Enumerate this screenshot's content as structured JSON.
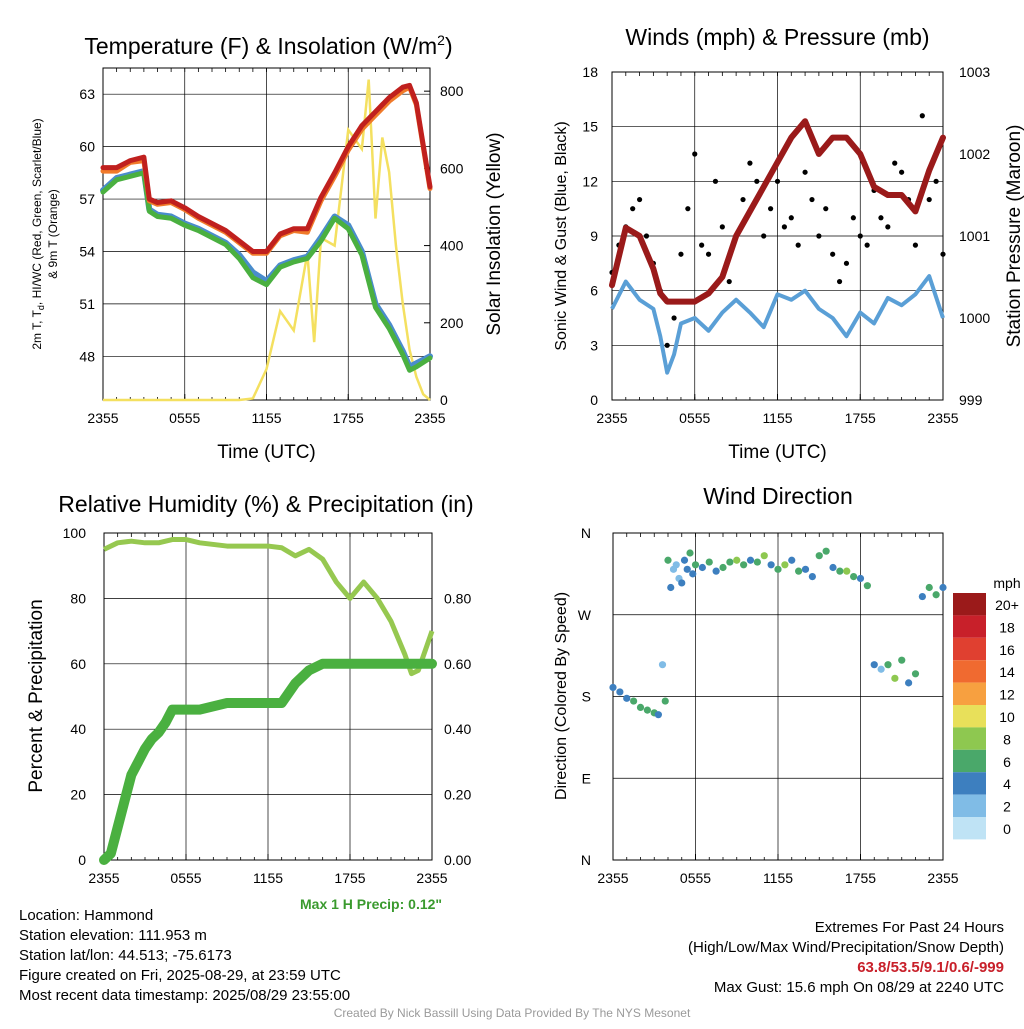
{
  "colors": {
    "temp": "#c0201e",
    "heat_index": "#4ab040",
    "dewpoint_blue": "#4a8ccc",
    "temp_9m": "#f07a2a",
    "insolation": "#f4e060",
    "pressure": "#9a1a1a",
    "wind": "#5a9fd6",
    "gust": "#000000",
    "rh": "#96c850",
    "precip": "#4ab040",
    "extremes": "#c8202a",
    "precip_note": "#3a9a2e"
  },
  "info": {
    "location": "Location: Hammond",
    "elevation": "Station elevation: 111.953 m",
    "latlon": "Station lat/lon: 44.513; -75.6173",
    "created": "Figure created on Fri, 2025-08-29, at 23:59 UTC",
    "recent": "Most recent data timestamp: 2025/08/29 23:55:00",
    "extremes_title": "Extremes For Past 24 Hours",
    "extremes_sub": "(High/Low/Max Wind/Precipitation/Snow Depth)",
    "extremes_values": "63.8/53.5/9.1/0.6/-999",
    "max_gust": "Max Gust: 15.6 mph On 08/29 at 2240 UTC",
    "precip_note": "Max 1 H Precip: 0.12\"",
    "credit": "Created By Nick Bassill Using Data Provided By The NYS Mesonet"
  },
  "chart_data": [
    {
      "id": "temperature",
      "type": "line",
      "title": "Temperature (F) & Insolation (W/m",
      "title_sup": "2",
      "title_close": ")",
      "xlabel": "Time (UTC)",
      "ylabel_lines": [
        "2m T, T",
        "d",
        ", HI/WC (Red, Green, Scarlet/Blue)",
        "& 9m T (Orange)"
      ],
      "ylabel_right": "Solar Insolation (Yellow)",
      "x_ticks": [
        "2355",
        "0555",
        "1155",
        "1755",
        "2355"
      ],
      "ylim": [
        45.5,
        64.5
      ],
      "y_ticks": [
        48,
        51,
        54,
        57,
        60,
        63
      ],
      "y2lim": [
        0,
        860
      ],
      "y2_ticks": [
        0,
        200,
        400,
        600,
        800
      ],
      "x_hours": [
        0,
        1,
        2,
        3,
        3.4,
        4,
        5,
        6,
        7,
        8,
        9,
        10,
        11,
        12,
        13,
        14,
        15,
        16,
        17,
        18,
        19,
        20,
        21,
        22,
        22.5,
        23,
        24
      ],
      "series": [
        {
          "key": "temp",
          "values": [
            58.8,
            58.8,
            59.2,
            59.4,
            57.0,
            56.8,
            56.9,
            56.5,
            56.0,
            55.6,
            55.2,
            54.6,
            54.0,
            54.0,
            55.0,
            55.3,
            55.3,
            57.1,
            58.5,
            60.0,
            61.2,
            62.0,
            62.8,
            63.4,
            63.5,
            62.5,
            57.7
          ]
        },
        {
          "key": "temp_9m",
          "values": [
            58.6,
            58.6,
            59.1,
            59.2,
            56.9,
            56.7,
            56.8,
            56.4,
            55.9,
            55.5,
            55.1,
            54.5,
            53.9,
            53.9,
            54.9,
            55.2,
            55.1,
            56.9,
            58.3,
            59.8,
            61.0,
            61.8,
            62.6,
            63.2,
            63.4,
            62.4,
            57.6
          ]
        },
        {
          "key": "dewpoint_blue",
          "values": [
            57.5,
            58.2,
            58.4,
            58.6,
            56.4,
            56.1,
            56.0,
            55.6,
            55.3,
            54.9,
            54.5,
            53.8,
            52.8,
            52.3,
            53.2,
            53.5,
            53.7,
            54.8,
            56.0,
            55.5,
            54.0,
            51.0,
            49.8,
            48.3,
            47.4,
            47.6,
            48.0
          ]
        },
        {
          "key": "heat_index",
          "values": [
            57.4,
            58.1,
            58.3,
            58.5,
            56.3,
            56.0,
            55.9,
            55.5,
            55.2,
            54.8,
            54.4,
            53.6,
            52.5,
            52.1,
            53.1,
            53.4,
            53.6,
            54.6,
            55.9,
            55.3,
            53.8,
            50.8,
            49.6,
            48.1,
            47.2,
            47.4,
            47.9
          ]
        }
      ],
      "insolation": {
        "x_hours": [
          0,
          3,
          6,
          8,
          9,
          10,
          11,
          12,
          13,
          14,
          15,
          15.5,
          16,
          17,
          18,
          19,
          19.5,
          20,
          20.5,
          21,
          21.5,
          22,
          22.5,
          23,
          23.5,
          24
        ],
        "values": [
          0,
          0,
          0,
          0,
          0,
          0,
          4,
          80,
          230,
          180,
          380,
          150,
          420,
          400,
          700,
          650,
          830,
          470,
          680,
          590,
          400,
          250,
          130,
          60,
          15,
          0
        ]
      }
    },
    {
      "id": "winds",
      "type": "line",
      "title": "Winds (mph) & Pressure (mb)",
      "xlabel": "Time (UTC)",
      "ylabel": "Sonic Wind & Gust (Blue, Black)",
      "ylabel_right": "Station Pressure (Maroon)",
      "x_ticks": [
        "2355",
        "0555",
        "1155",
        "1755",
        "2355"
      ],
      "ylim": [
        0,
        18
      ],
      "y_ticks": [
        0,
        3,
        6,
        9,
        12,
        15,
        18
      ],
      "y2lim": [
        999,
        1003
      ],
      "y2_ticks": [
        999,
        1000,
        1001,
        1002,
        1003
      ],
      "wind": {
        "x_hours": [
          0,
          1,
          2,
          3,
          3.5,
          4,
          4.5,
          5,
          6,
          7,
          8,
          9,
          10,
          11,
          12,
          13,
          14,
          15,
          16,
          17,
          18,
          19,
          20,
          21,
          22,
          23,
          24
        ],
        "values": [
          5.0,
          6.5,
          5.5,
          5.0,
          3.5,
          1.5,
          2.5,
          4.2,
          4.5,
          3.8,
          4.8,
          5.5,
          4.8,
          4.0,
          5.8,
          5.5,
          6.0,
          5.0,
          4.5,
          3.5,
          4.8,
          4.2,
          5.6,
          5.2,
          5.8,
          6.8,
          4.5
        ]
      },
      "pressure": {
        "x_hours": [
          0,
          1,
          2,
          3,
          3.5,
          4,
          5,
          6,
          7,
          8,
          9,
          10,
          11,
          12,
          13,
          14,
          15,
          16,
          17,
          18,
          19,
          20,
          21,
          22,
          23,
          24
        ],
        "values": [
          1000.4,
          1001.1,
          1001.0,
          1000.6,
          1000.3,
          1000.2,
          1000.2,
          1000.2,
          1000.3,
          1000.5,
          1001.0,
          1001.3,
          1001.6,
          1001.9,
          1002.2,
          1002.4,
          1002.0,
          1002.2,
          1002.2,
          1002.0,
          1001.6,
          1001.5,
          1001.5,
          1001.3,
          1001.8,
          1002.2
        ]
      },
      "gust": {
        "x_hours": [
          0,
          0.5,
          1,
          1.5,
          2,
          2.5,
          3,
          3.5,
          4,
          4.5,
          5,
          5.5,
          6,
          6.5,
          7,
          7.5,
          8,
          8.5,
          9,
          9.5,
          10,
          10.5,
          11,
          11.5,
          12,
          12.5,
          13,
          13.5,
          14,
          14.5,
          15,
          15.5,
          16,
          16.5,
          17,
          17.5,
          18,
          18.5,
          19,
          19.5,
          20,
          20.5,
          21,
          21.5,
          22,
          22.5,
          23,
          23.5,
          24
        ],
        "values": [
          7.0,
          8.5,
          9.5,
          10.5,
          11.0,
          9.0,
          7.5,
          6.0,
          3.0,
          4.5,
          8.0,
          10.5,
          13.5,
          8.5,
          8.0,
          12.0,
          9.5,
          6.5,
          9.0,
          11.0,
          13.0,
          12.0,
          9.0,
          10.5,
          12.0,
          9.5,
          10.0,
          8.5,
          12.5,
          11.0,
          9.0,
          10.5,
          8.0,
          6.5,
          7.5,
          10.0,
          9.0,
          8.5,
          11.5,
          10.0,
          9.5,
          13.0,
          12.5,
          11.0,
          8.5,
          15.6,
          11.0,
          12.0,
          8.0
        ]
      }
    },
    {
      "id": "humidity",
      "type": "line",
      "title": "Relative Humidity (%) & Precipitation (in)",
      "ylabel": "Percent & Precipitation",
      "x_ticks": [
        "2355",
        "0555",
        "1155",
        "1755",
        "2355"
      ],
      "ylim": [
        0,
        100
      ],
      "y_ticks": [
        0,
        20,
        40,
        60,
        80,
        100
      ],
      "y2lim": [
        0,
        1
      ],
      "y2_ticks": [
        "0.00",
        "0.20",
        "0.40",
        "0.60",
        "0.80"
      ],
      "rh": {
        "x_hours": [
          0,
          1,
          2,
          3,
          4,
          5,
          6,
          7,
          8,
          9,
          10,
          11,
          12,
          13,
          14,
          15,
          16,
          17,
          18,
          19,
          20,
          21,
          22,
          22.5,
          23,
          24
        ],
        "values": [
          95,
          97,
          97.5,
          97,
          97,
          98,
          98,
          97,
          96.5,
          96,
          96,
          96,
          96,
          95.5,
          93,
          95,
          92,
          85,
          80,
          85,
          80,
          73,
          63,
          57,
          58,
          70
        ]
      },
      "precip": {
        "x_hours": [
          0,
          0.5,
          1,
          1.5,
          2,
          2.5,
          3,
          3.5,
          4,
          4.5,
          5,
          5.5,
          6,
          7,
          9,
          12,
          13,
          14,
          15,
          16,
          18,
          20,
          22,
          24
        ],
        "values": [
          0,
          0.02,
          0.1,
          0.18,
          0.26,
          0.3,
          0.34,
          0.37,
          0.39,
          0.42,
          0.46,
          0.46,
          0.46,
          0.46,
          0.48,
          0.48,
          0.48,
          0.54,
          0.58,
          0.6,
          0.6,
          0.6,
          0.6,
          0.6
        ]
      }
    },
    {
      "id": "direction",
      "type": "scatter",
      "title": "Wind Direction",
      "ylabel": "Direction (Colored By Speed)",
      "x_ticks": [
        "2355",
        "0555",
        "1155",
        "1755",
        "2355"
      ],
      "y_ticks": [
        "N",
        "E",
        "S",
        "W",
        "N"
      ],
      "ylim": [
        0,
        360
      ],
      "legend_title": "mph",
      "legend_labels": [
        "20+",
        "18",
        "16",
        "14",
        "12",
        "10",
        "8",
        "6",
        "4",
        "2",
        "0"
      ],
      "legend_colors": [
        "#9b1a1a",
        "#c8202a",
        "#e04030",
        "#f06a30",
        "#f7a040",
        "#e8e05a",
        "#8ec850",
        "#4aa86a",
        "#3d7fbf",
        "#80bce6",
        "#bfe3f5"
      ],
      "points_hours": [
        0,
        0.5,
        1,
        1.5,
        2,
        2.5,
        3,
        3.3,
        3.6,
        3.8,
        4,
        4.2,
        4.4,
        4.6,
        4.8,
        5,
        5.2,
        5.4,
        5.6,
        5.8,
        6,
        6.5,
        7,
        7.5,
        8,
        8.5,
        9,
        9.5,
        10,
        10.5,
        11,
        11.5,
        12,
        12.5,
        13,
        13.5,
        14,
        14.5,
        15,
        15.5,
        16,
        16.5,
        17,
        17.5,
        18,
        18.5,
        19,
        19.5,
        20,
        20.5,
        21,
        21.5,
        22,
        22.5,
        23,
        23.5,
        24
      ],
      "points_dir": [
        190,
        185,
        178,
        175,
        168,
        165,
        162,
        160,
        215,
        175,
        330,
        300,
        320,
        325,
        310,
        305,
        330,
        320,
        338,
        315,
        325,
        322,
        328,
        318,
        322,
        328,
        330,
        325,
        330,
        328,
        335,
        325,
        320,
        325,
        330,
        318,
        320,
        312,
        335,
        340,
        322,
        318,
        318,
        312,
        310,
        302,
        215,
        210,
        215,
        200,
        220,
        195,
        205,
        290,
        300,
        292,
        300
      ],
      "points_speed": [
        4,
        3,
        4,
        5,
        6,
        6,
        5,
        3,
        2,
        6,
        5,
        3,
        1,
        1,
        2,
        3,
        4,
        4,
        5,
        3,
        6,
        4,
        5,
        4,
        6,
        6,
        7,
        5,
        4,
        6,
        7,
        4,
        5,
        7,
        4,
        5,
        4,
        3,
        5,
        6,
        4,
        6,
        7,
        5,
        4,
        6,
        3,
        2,
        5,
        7,
        6,
        4,
        5,
        4,
        6,
        5,
        4
      ]
    }
  ]
}
